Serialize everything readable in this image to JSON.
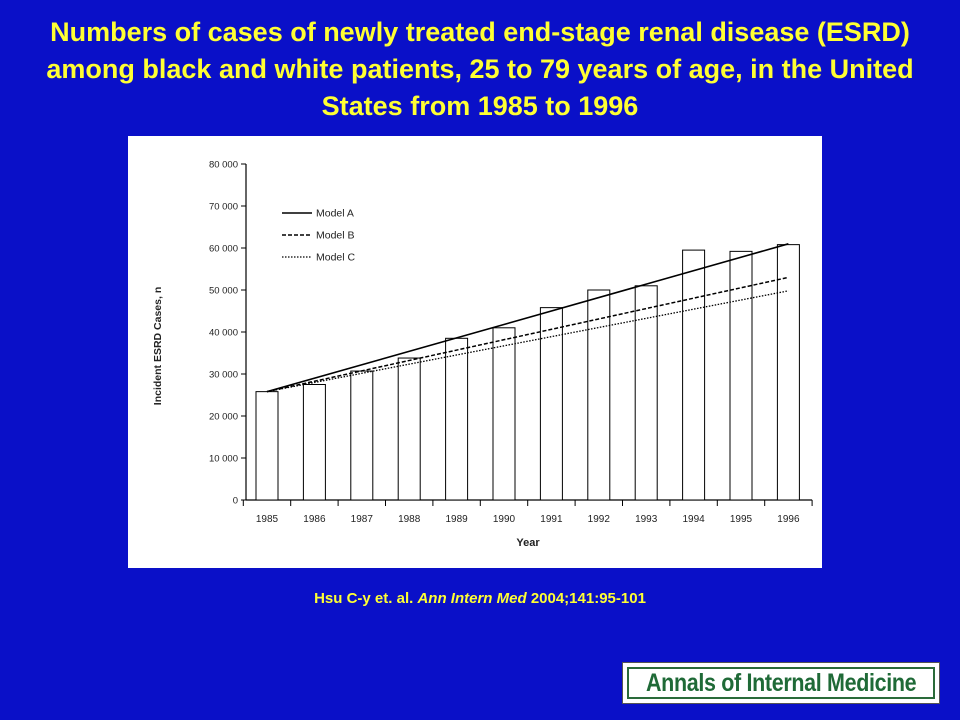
{
  "slide": {
    "title": "Numbers of cases of newly treated end-stage renal disease (ESRD) among black and white patients, 25 to 79 years of age, in the United States from 1985 to 1996",
    "citation": {
      "authors": "Hsu C-y et. al.",
      "journal": "Ann Intern Med",
      "ref": "2004;141:95-101"
    },
    "logo_text": "Annals of Internal Medicine"
  },
  "chart_data": {
    "type": "bar",
    "xlabel": "Year",
    "ylabel": "Incident ESRD Cases, n",
    "ylim": [
      0,
      80000
    ],
    "yticks": [
      0,
      10000,
      20000,
      30000,
      40000,
      50000,
      60000,
      70000,
      80000
    ],
    "ytick_labels": [
      "0",
      "10 000",
      "20 000",
      "30 000",
      "40 000",
      "50 000",
      "60 000",
      "70 000",
      "80 000"
    ],
    "categories": [
      "1985",
      "1986",
      "1987",
      "1988",
      "1989",
      "1990",
      "1991",
      "1992",
      "1993",
      "1994",
      "1995",
      "1996"
    ],
    "values": [
      25800,
      27500,
      30700,
      33800,
      38500,
      41000,
      45800,
      50000,
      51000,
      59500,
      59200,
      60800
    ],
    "bar_color": "#ffffff",
    "grid": false,
    "legend_position": "top-left",
    "lines": [
      {
        "name": "Model A",
        "style": "solid",
        "x": [
          "1985",
          "1996"
        ],
        "y": [
          25800,
          61000
        ]
      },
      {
        "name": "Model B",
        "style": "dashed",
        "x": [
          "1985",
          "1996"
        ],
        "y": [
          25800,
          53000
        ]
      },
      {
        "name": "Model C",
        "style": "dotted",
        "x": [
          "1985",
          "1996"
        ],
        "y": [
          25800,
          49800
        ]
      }
    ]
  }
}
